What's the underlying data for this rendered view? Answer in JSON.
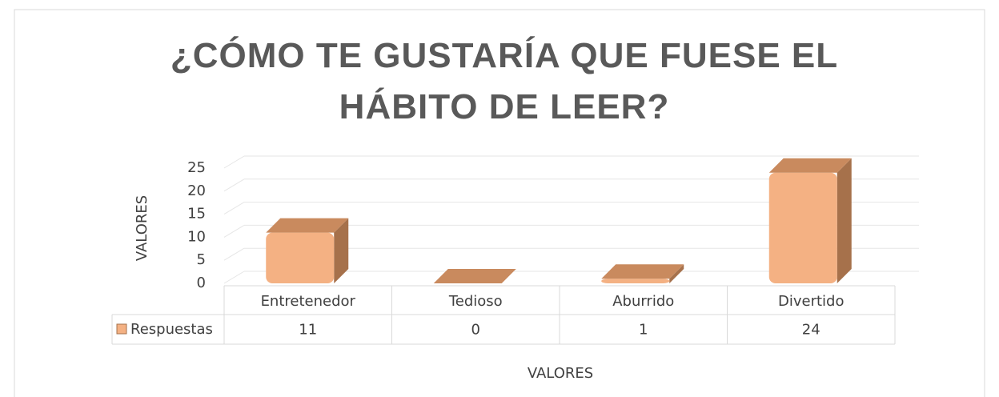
{
  "chart_data": {
    "type": "bar3d",
    "title": "¿CÓMO TE GUSTARÍA QUE FUESE EL HÁBITO DE LEER?",
    "categories": [
      "Entretenedor",
      "Tedioso",
      "Aburrido",
      "Divertido"
    ],
    "series": [
      {
        "name": "Respuestas",
        "color": "#f4b183",
        "values": [
          11,
          0,
          1,
          24
        ]
      }
    ],
    "ylim": [
      0,
      25
    ],
    "yticks": [
      0,
      5,
      10,
      15,
      20,
      25
    ],
    "y_label": "VALORES",
    "x_label": "VALORES",
    "grid": true,
    "data_table": true
  }
}
